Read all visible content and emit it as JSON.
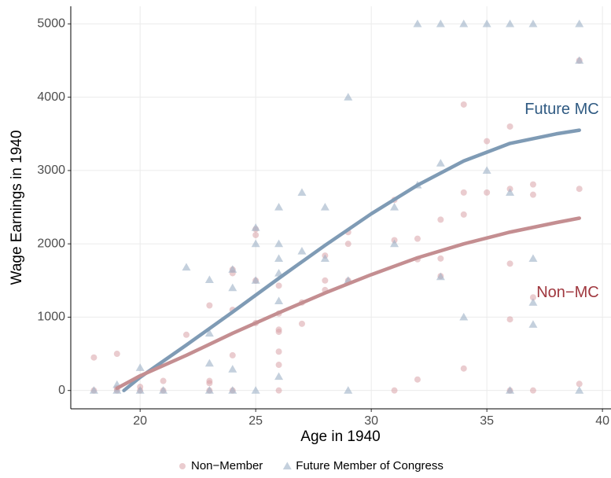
{
  "chart_data": {
    "type": "scatter",
    "x_label": "Age in 1940",
    "y_label": "Wage Earnings in 1940",
    "xlim": [
      17,
      40.37
    ],
    "ylim": [
      -250,
      5240
    ],
    "xticks": [
      20,
      25,
      30,
      35,
      40
    ],
    "yticks": [
      0,
      1000,
      2000,
      3000,
      4000,
      5000
    ],
    "grid": true,
    "legend": "bottom",
    "series": [
      {
        "name": "Non−Member",
        "color": "#d9a3a8",
        "marker": "circle",
        "x": [
          18,
          18,
          19,
          19,
          19,
          20,
          20,
          21,
          21,
          22,
          23,
          23,
          23,
          23,
          24,
          24,
          24,
          24,
          24,
          25,
          25,
          25,
          25,
          26,
          26,
          26,
          26,
          26,
          26,
          26,
          27,
          27,
          28,
          28,
          28,
          29,
          29,
          29,
          31,
          31,
          31,
          32,
          32,
          32,
          33,
          33,
          33,
          34,
          34,
          34,
          34,
          35,
          35,
          36,
          36,
          36,
          36,
          36,
          37,
          37,
          37,
          37,
          39,
          39,
          39
        ],
        "values": [
          450,
          0,
          500,
          0,
          30,
          0,
          50,
          130,
          0,
          760,
          1160,
          130,
          100,
          0,
          1600,
          1650,
          480,
          1100,
          0,
          2120,
          2200,
          1500,
          920,
          1430,
          1050,
          830,
          800,
          530,
          350,
          0,
          1200,
          910,
          1840,
          1500,
          1370,
          2160,
          2000,
          1500,
          2600,
          2050,
          0,
          2070,
          1790,
          150,
          2330,
          1800,
          1560,
          3900,
          2700,
          2400,
          300,
          3400,
          2700,
          3600,
          2750,
          1730,
          970,
          0,
          2810,
          2670,
          1270,
          0,
          4500,
          2750,
          90
        ]
      },
      {
        "name": "Future Member of Congress",
        "color": "#9cb1c7",
        "marker": "triangle",
        "x": [
          18,
          19,
          19,
          20,
          20,
          21,
          22,
          23,
          23,
          23,
          23,
          24,
          24,
          24,
          24,
          25,
          25,
          25,
          25,
          26,
          26,
          26,
          26,
          26,
          26,
          27,
          27,
          28,
          28,
          29,
          29,
          29,
          31,
          31,
          32,
          32,
          33,
          33,
          33,
          34,
          34,
          35,
          35,
          36,
          36,
          36,
          37,
          37,
          37,
          37,
          39,
          39,
          39
        ],
        "values": [
          0,
          80,
          0,
          310,
          0,
          0,
          1680,
          1510,
          780,
          370,
          0,
          1650,
          1400,
          290,
          0,
          2220,
          2000,
          1500,
          0,
          2500,
          2000,
          1800,
          1600,
          1220,
          190,
          2700,
          1900,
          2500,
          1800,
          4000,
          1500,
          0,
          2500,
          2000,
          5000,
          2800,
          5000,
          3100,
          1550,
          5000,
          1000,
          5000,
          3000,
          5000,
          2700,
          0,
          5000,
          1800,
          1200,
          900,
          5000,
          4500,
          0
        ]
      }
    ],
    "lines": [
      {
        "label": "Future MC",
        "color": "#7f9bb5",
        "label_color": "#2f5a82",
        "x": [
          19.3,
          20,
          22,
          24,
          26,
          28,
          30,
          32,
          34,
          36,
          38,
          39
        ],
        "values": [
          0,
          180,
          620,
          1070,
          1530,
          1980,
          2410,
          2800,
          3130,
          3370,
          3500,
          3550
        ]
      },
      {
        "label": "Non−MC",
        "color": "#c48e91",
        "label_color": "#a0383f",
        "x": [
          19,
          20,
          22,
          24,
          26,
          28,
          30,
          32,
          34,
          36,
          38,
          39
        ],
        "values": [
          30,
          200,
          480,
          780,
          1060,
          1330,
          1580,
          1810,
          2000,
          2160,
          2290,
          2350
        ]
      }
    ]
  }
}
